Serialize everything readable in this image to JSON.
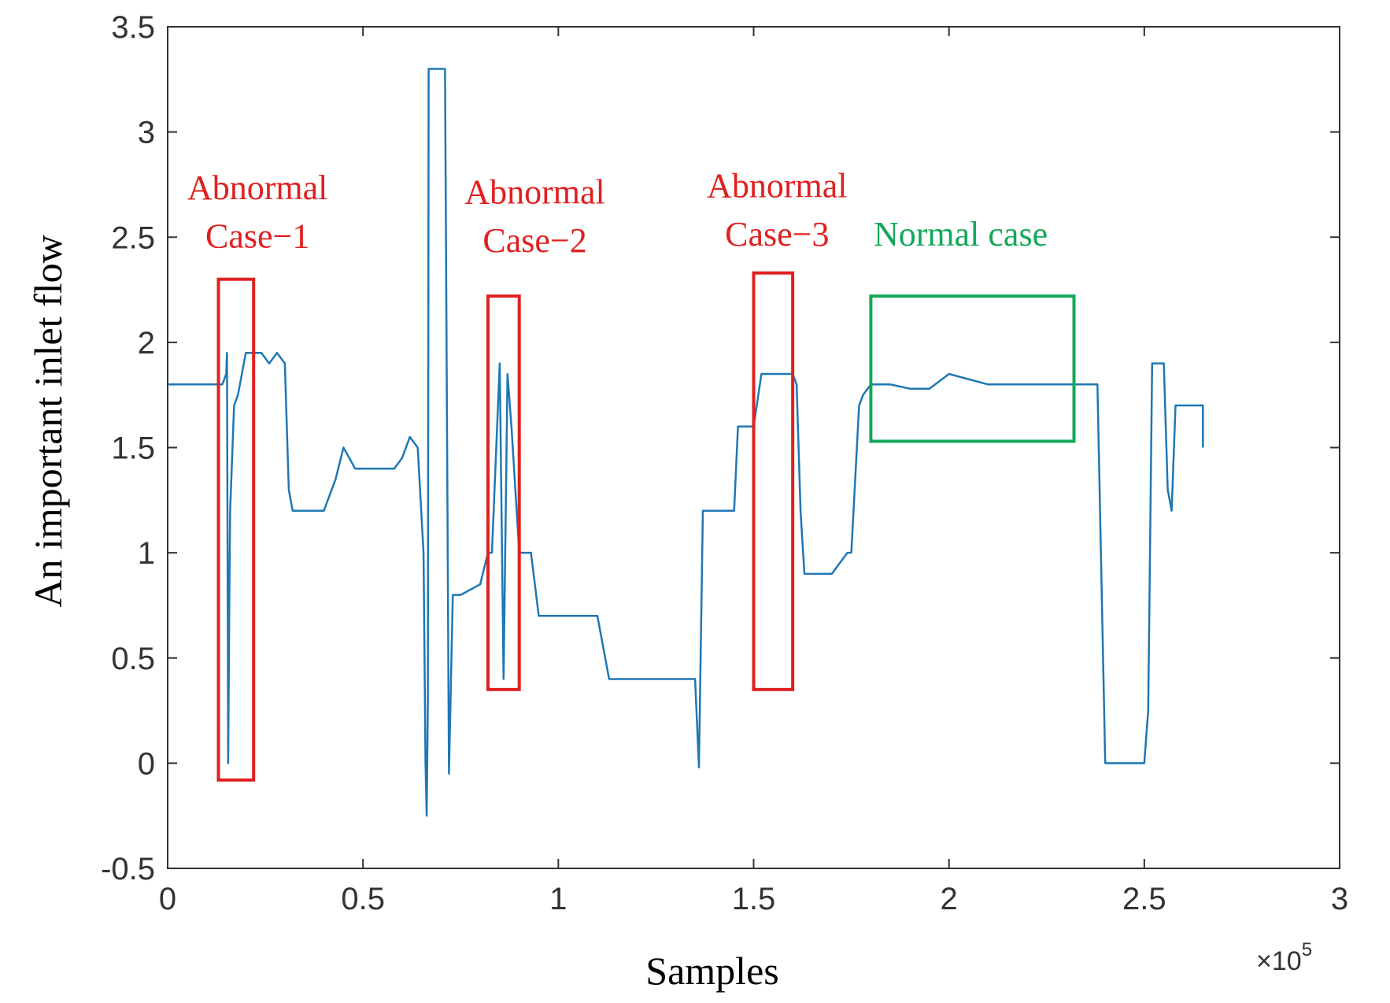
{
  "chart_data": {
    "type": "line",
    "xlabel": "Samples",
    "ylabel": "An important inlet flow",
    "x_multiplier": {
      "base": "×10",
      "exponent": "5"
    },
    "xlim": [
      0,
      3
    ],
    "ylim": [
      -0.5,
      3.5
    ],
    "x_ticks": [
      0,
      0.5,
      1,
      1.5,
      2,
      2.5,
      3
    ],
    "x_tick_labels": [
      "0",
      "0.5",
      "1",
      "1.5",
      "2",
      "2.5",
      "3"
    ],
    "y_ticks": [
      -0.5,
      0,
      0.5,
      1,
      1.5,
      2,
      2.5,
      3,
      3.5
    ],
    "y_tick_labels": [
      "-0.5",
      "0",
      "0.5",
      "1",
      "1.5",
      "2",
      "2.5",
      "3",
      "3.5"
    ],
    "grid": false,
    "series": [
      {
        "name": "inlet flow",
        "color": "#1f77b4",
        "x": [
          0,
          0.06,
          0.12,
          0.14,
          0.15,
          0.152,
          0.155,
          0.158,
          0.16,
          0.17,
          0.18,
          0.2,
          0.22,
          0.24,
          0.26,
          0.28,
          0.3,
          0.31,
          0.32,
          0.33,
          0.4,
          0.43,
          0.45,
          0.48,
          0.5,
          0.55,
          0.58,
          0.6,
          0.62,
          0.64,
          0.655,
          0.66,
          0.663,
          0.666,
          0.668,
          0.672,
          0.7,
          0.71,
          0.72,
          0.73,
          0.75,
          0.8,
          0.82,
          0.83,
          0.85,
          0.86,
          0.87,
          0.88,
          0.9,
          0.92,
          0.93,
          0.95,
          1.0,
          1.05,
          1.1,
          1.13,
          1.14,
          1.2,
          1.3,
          1.35,
          1.36,
          1.37,
          1.38,
          1.4,
          1.45,
          1.46,
          1.5,
          1.52,
          1.55,
          1.6,
          1.61,
          1.62,
          1.63,
          1.65,
          1.7,
          1.74,
          1.75,
          1.77,
          1.78,
          1.8,
          1.85,
          1.9,
          1.95,
          2.0,
          2.1,
          2.2,
          2.3,
          2.35,
          2.38,
          2.4,
          2.42,
          2.45,
          2.5,
          2.51,
          2.52,
          2.55,
          2.56,
          2.57,
          2.58,
          2.6,
          2.65,
          2.65
        ],
        "y": [
          1.8,
          1.8,
          1.8,
          1.8,
          1.85,
          1.95,
          0.0,
          0.8,
          1.2,
          1.7,
          1.75,
          1.95,
          1.95,
          1.95,
          1.9,
          1.95,
          1.9,
          1.3,
          1.2,
          1.2,
          1.2,
          1.35,
          1.5,
          1.4,
          1.4,
          1.4,
          1.4,
          1.45,
          1.55,
          1.5,
          1.0,
          0.0,
          -0.25,
          0.3,
          3.3,
          3.3,
          3.3,
          3.3,
          -0.05,
          0.8,
          0.8,
          0.85,
          1.0,
          1.0,
          1.9,
          0.4,
          1.85,
          1.6,
          1.0,
          1.0,
          1.0,
          0.7,
          0.7,
          0.7,
          0.7,
          0.4,
          0.4,
          0.4,
          0.4,
          0.4,
          -0.02,
          1.2,
          1.2,
          1.2,
          1.2,
          1.6,
          1.6,
          1.85,
          1.85,
          1.85,
          1.8,
          1.2,
          0.9,
          0.9,
          0.9,
          1.0,
          1.0,
          1.7,
          1.75,
          1.8,
          1.8,
          1.78,
          1.78,
          1.85,
          1.8,
          1.8,
          1.8,
          1.8,
          1.8,
          0.0,
          0.0,
          0.0,
          0.0,
          0.25,
          1.9,
          1.9,
          1.3,
          1.2,
          1.7,
          1.7,
          1.7,
          1.5
        ]
      }
    ],
    "annotations": [
      {
        "lines": [
          "Abnormal",
          "Case−1"
        ],
        "color": "#e02020",
        "box": {
          "x": [
            0.13,
            0.22
          ],
          "y": [
            -0.08,
            2.3
          ]
        },
        "label_at": {
          "x": 0.23,
          "y": [
            2.68,
            2.45
          ]
        }
      },
      {
        "lines": [
          "Abnormal",
          "Case−2"
        ],
        "color": "#e02020",
        "box": {
          "x": [
            0.82,
            0.9
          ],
          "y": [
            0.35,
            2.22
          ]
        },
        "label_at": {
          "x": 0.94,
          "y": [
            2.66,
            2.43
          ]
        }
      },
      {
        "lines": [
          "Abnormal",
          "Case−3"
        ],
        "color": "#e02020",
        "box": {
          "x": [
            1.5,
            1.6
          ],
          "y": [
            0.35,
            2.33
          ]
        },
        "label_at": {
          "x": 1.56,
          "y": [
            2.69,
            2.46
          ]
        }
      },
      {
        "lines": [
          "Normal case"
        ],
        "color": "#13a858",
        "box": {
          "x": [
            1.8,
            2.32
          ],
          "y": [
            1.53,
            2.22
          ]
        },
        "label_at": {
          "x": 2.03,
          "y": [
            2.46
          ]
        }
      }
    ]
  }
}
